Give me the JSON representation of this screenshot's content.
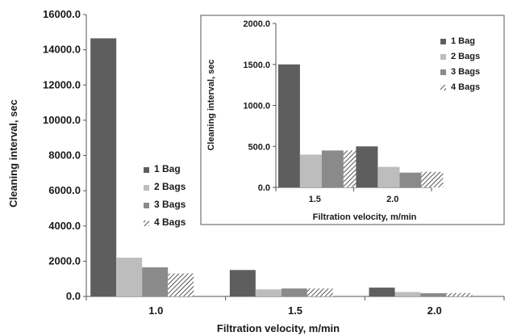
{
  "chart_data": [
    {
      "type": "bar",
      "title": "",
      "xlabel": "Filtration velocity, m/min",
      "ylabel": "Cleaning interval, sec",
      "categories": [
        "1.0",
        "1.5",
        "2.0"
      ],
      "ylim": [
        0,
        16000
      ],
      "yticks": [
        "0.0",
        "2000.0",
        "4000.0",
        "6000.0",
        "8000.0",
        "10000.0",
        "12000.0",
        "14000.0",
        "16000.0"
      ],
      "series": [
        {
          "name": "1 Bag",
          "values": [
            14650,
            1500,
            500
          ]
        },
        {
          "name": "2 Bags",
          "values": [
            2200,
            400,
            250
          ]
        },
        {
          "name": "3 Bags",
          "values": [
            1650,
            450,
            180
          ]
        },
        {
          "name": "4 Bags",
          "values": [
            1300,
            450,
            190
          ]
        }
      ],
      "legend": "center",
      "grid": false
    },
    {
      "type": "bar",
      "title": "",
      "xlabel": "Filtration velocity, m/min",
      "ylabel": "Cleaning interval, sec",
      "categories": [
        "1.5",
        "2.0"
      ],
      "ylim": [
        0,
        2000
      ],
      "yticks": [
        "0.0",
        "500.0",
        "1000.0",
        "1500.0",
        "2000.0"
      ],
      "series": [
        {
          "name": "1 Bag",
          "values": [
            1500,
            500
          ]
        },
        {
          "name": "2 Bags",
          "values": [
            400,
            250
          ]
        },
        {
          "name": "3 Bags",
          "values": [
            450,
            180
          ]
        },
        {
          "name": "4 Bags",
          "values": [
            450,
            190
          ]
        }
      ],
      "legend": "right",
      "grid": false
    }
  ],
  "colors": {
    "1 Bag": "#5e5e5e",
    "2 Bags": "#bdbdbd",
    "3 Bags": "#8a8a8a",
    "4 Bags": "hatch"
  }
}
